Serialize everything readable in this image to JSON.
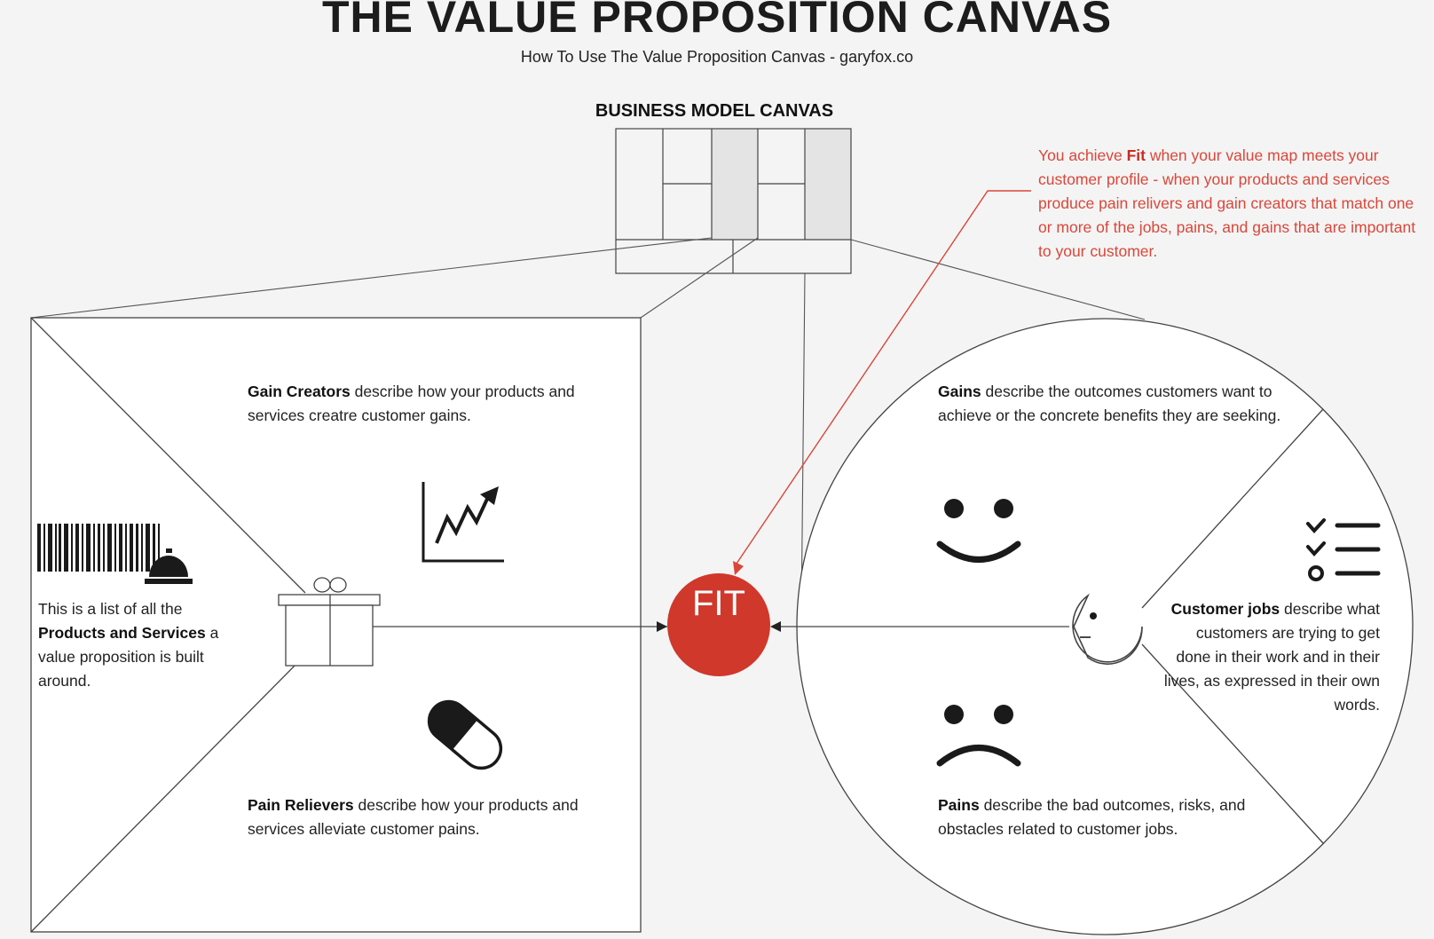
{
  "header": {
    "title": "THE VALUE PROPOSITION CANVAS",
    "subtitle": "How To Use The Value Proposition Canvas - garyfox.co"
  },
  "business_model_canvas": {
    "label": "BUSINESS MODEL CANVAS"
  },
  "fit_note": {
    "prefix": "You achieve ",
    "term": "Fit",
    "rest": " when your value map meets your customer profile - when your products and services produce pain relivers and gain creators that match one or more of the jobs, pains, and gains that are important to your customer."
  },
  "value_map": {
    "gain_creators": {
      "term": "Gain Creators",
      "text": " describe how your products and services creatre customer gains."
    },
    "products_services": {
      "intro": "This is a list of all the ",
      "term": "Products and Services",
      "text": " a value proposition is built around."
    },
    "pain_relievers": {
      "term": "Pain Relievers",
      "text": " describe how your products and services alleviate customer pains."
    }
  },
  "customer_profile": {
    "gains": {
      "term": "Gains",
      "text": " describe the outcomes customers want to achieve or the concrete benefits they are seeking."
    },
    "customer_jobs": {
      "term": "Customer jobs",
      "text": " describe what customers are trying to get done in their work and in their lives, as expressed in their own words."
    },
    "pains": {
      "term": "Pains",
      "text": " describe the bad outcomes, risks, and obstacles related to customer jobs."
    }
  },
  "fit": {
    "label": "FIT"
  },
  "colors": {
    "accent_red": "#d0382b",
    "fit_text": "#d9473a",
    "highlight_gray": "#e4e4e4",
    "line": "#333333"
  },
  "icons": [
    "barcode-icon",
    "service-bell-icon",
    "gift-icon",
    "growth-chart-icon",
    "pill-icon",
    "smiley-face-icon",
    "sad-face-icon",
    "checklist-icon",
    "customer-head-icon"
  ]
}
